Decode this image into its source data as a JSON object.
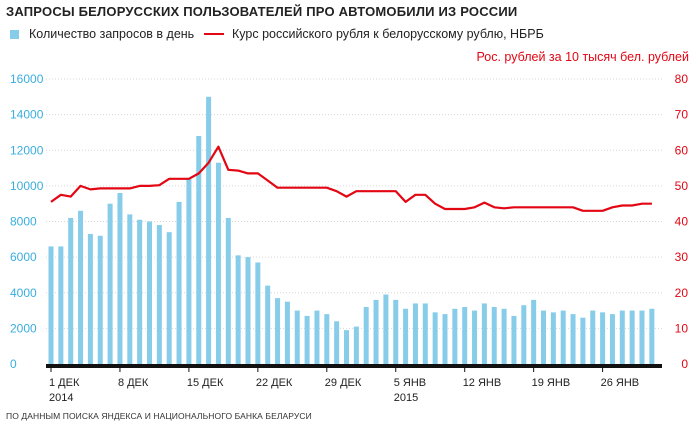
{
  "title": "ЗАПРОСЫ БЕЛОРУССКИХ ПОЛЬЗОВАТЕЛЕЙ ПРО АВТОМОБИЛИ ИЗ РОССИИ",
  "source": "ПО ДАННЫМ ПОИСКА ЯНДЕКСА И НАЦИОНАЛЬНОГО БАНКА БЕЛАРУСИ",
  "colors": {
    "bars": "#87cdea",
    "line": "#e30613",
    "right_axis": "#e30613",
    "axis_text": "#3aaee0",
    "baseline": "#111111",
    "grid": "#d6d6d6"
  },
  "chart_data": {
    "type": "bar+line",
    "x_labels": [
      {
        "day_index": 0,
        "label": "1 ДЕК",
        "sub": "2014"
      },
      {
        "day_index": 7,
        "label": "8 ДЕК",
        "sub": ""
      },
      {
        "day_index": 14,
        "label": "15 ДЕК",
        "sub": ""
      },
      {
        "day_index": 21,
        "label": "22 ДЕК",
        "sub": ""
      },
      {
        "day_index": 28,
        "label": "29 ДЕК",
        "sub": ""
      },
      {
        "day_index": 35,
        "label": "5 ЯНВ",
        "sub": "2015"
      },
      {
        "day_index": 42,
        "label": "12 ЯНВ",
        "sub": ""
      },
      {
        "day_index": 49,
        "label": "19 ЯНВ",
        "sub": ""
      },
      {
        "day_index": 56,
        "label": "26 ЯНВ",
        "sub": ""
      }
    ],
    "left_axis": {
      "ticks": [
        "0",
        "2000",
        "4000",
        "6000",
        "8000",
        "10000",
        "12000",
        "14000",
        "16000"
      ],
      "ylim": [
        0,
        16000
      ]
    },
    "right_axis": {
      "title": "Рос. рублей за 10 тысяч бел. рублей",
      "ticks": [
        "0",
        "10",
        "20",
        "30",
        "40",
        "50",
        "60",
        "70",
        "80"
      ],
      "ylim": [
        0,
        80
      ]
    },
    "grid": true,
    "series": [
      {
        "name": "Количество запросов в день",
        "kind": "bar",
        "axis": "left",
        "values": [
          6600,
          6600,
          8200,
          8600,
          7300,
          7200,
          9000,
          9600,
          8400,
          8100,
          8000,
          7800,
          7400,
          9100,
          10400,
          12800,
          15000,
          11300,
          8200,
          6100,
          6000,
          5700,
          4400,
          3700,
          3500,
          3000,
          2700,
          3000,
          2800,
          2400,
          1900,
          2100,
          3200,
          3600,
          3900,
          3600,
          3100,
          3400,
          3400,
          2900,
          2800,
          3100,
          3200,
          3000,
          3400,
          3200,
          3100,
          2700,
          3300,
          3600,
          3000,
          2900,
          3000,
          2800,
          2600,
          3000,
          2900,
          2800,
          3000,
          3000,
          3000,
          3100
        ]
      },
      {
        "name": "Курс российского рубля к белорусскому рублю, НБРБ",
        "kind": "line",
        "axis": "right",
        "values": [
          45.5,
          47.5,
          47,
          50,
          49,
          49.3,
          49.3,
          49.3,
          49.3,
          50,
          50,
          50.2,
          52,
          52,
          52,
          53.5,
          56.5,
          61,
          54.5,
          54.3,
          53.5,
          53.5,
          51.5,
          49.5,
          49.5,
          49.5,
          49.5,
          49.5,
          49.5,
          48.5,
          47,
          48.5,
          48.5,
          48.5,
          48.5,
          48.5,
          45.5,
          47.5,
          47.5,
          45,
          43.5,
          43.5,
          43.5,
          44,
          45.3,
          44,
          43.7,
          44,
          44,
          44,
          44,
          44,
          44,
          44,
          43,
          43,
          43,
          44,
          44.5,
          44.5,
          45,
          45
        ]
      }
    ]
  }
}
